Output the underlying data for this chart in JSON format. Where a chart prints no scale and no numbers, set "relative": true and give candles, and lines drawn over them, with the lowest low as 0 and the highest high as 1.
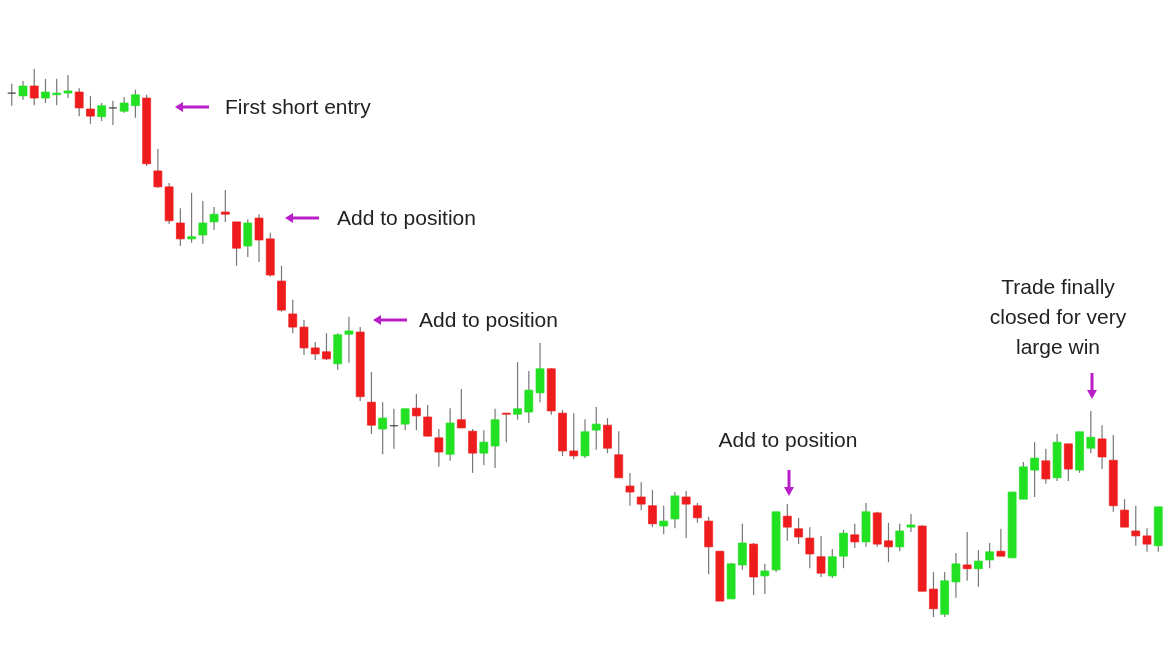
{
  "chart_data": {
    "type": "candlestick",
    "relative": true,
    "categories": [
      null,
      null,
      null,
      null,
      null,
      null,
      null,
      null,
      null,
      null,
      null,
      null,
      null,
      null,
      null,
      null,
      null,
      null,
      null,
      null,
      null,
      null,
      null,
      null,
      null,
      null,
      null,
      null,
      null,
      null,
      null,
      null,
      null,
      null,
      null,
      null,
      null,
      null,
      null,
      null,
      null,
      null,
      null,
      null,
      null,
      null,
      null,
      null,
      null,
      null,
      null,
      null,
      null,
      null,
      null,
      null,
      null,
      null,
      null,
      null,
      null,
      null,
      null,
      null,
      null,
      null,
      null,
      null,
      null,
      null,
      null,
      null,
      null,
      null,
      null,
      null,
      null,
      null,
      null,
      null,
      null,
      null,
      null,
      null,
      null,
      null,
      null,
      null,
      null,
      null,
      null,
      null,
      null,
      null,
      null,
      null,
      null,
      null,
      null,
      null,
      null,
      null,
      null
    ],
    "ohlc": [
      [
        0.956,
        0.973,
        0.933,
        0.956
      ],
      [
        0.951,
        0.978,
        0.944,
        0.969
      ],
      [
        0.969,
        1,
        0.934,
        0.947
      ],
      [
        0.947,
        0.982,
        0.938,
        0.958
      ],
      [
        0.953,
        0.982,
        0.934,
        0.956
      ],
      [
        0.956,
        0.989,
        0.947,
        0.96
      ],
      [
        0.958,
        0.965,
        0.914,
        0.929
      ],
      [
        0.927,
        0.951,
        0.9,
        0.914
      ],
      [
        0.913,
        0.938,
        0.905,
        0.933
      ],
      [
        0.929,
        0.942,
        0.898,
        0.929
      ],
      [
        0.923,
        0.949,
        0.92,
        0.938
      ],
      [
        0.933,
        0.962,
        0.911,
        0.953
      ],
      [
        0.947,
        0.953,
        0.823,
        0.827
      ],
      [
        0.814,
        0.854,
        0.783,
        0.785
      ],
      [
        0.785,
        0.792,
        0.717,
        0.723
      ],
      [
        0.719,
        0.746,
        0.677,
        0.69
      ],
      [
        0.69,
        0.774,
        0.683,
        0.694
      ],
      [
        0.697,
        0.759,
        0.681,
        0.719
      ],
      [
        0.721,
        0.748,
        0.706,
        0.735
      ],
      [
        0.739,
        0.779,
        0.721,
        0.735
      ],
      [
        0.721,
        0.721,
        0.641,
        0.673
      ],
      [
        0.677,
        0.726,
        0.657,
        0.719
      ],
      [
        0.728,
        0.735,
        0.648,
        0.688
      ],
      [
        0.69,
        0.701,
        0.621,
        0.624
      ],
      [
        0.613,
        0.641,
        0.557,
        0.56
      ],
      [
        0.553,
        0.579,
        0.518,
        0.529
      ],
      [
        0.529,
        0.542,
        0.478,
        0.491
      ],
      [
        0.491,
        0.502,
        0.469,
        0.48
      ],
      [
        0.484,
        0.518,
        0.469,
        0.471
      ],
      [
        0.462,
        0.518,
        0.451,
        0.515
      ],
      [
        0.516,
        0.548,
        0.464,
        0.522
      ],
      [
        0.52,
        0.529,
        0.394,
        0.402
      ],
      [
        0.392,
        0.447,
        0.334,
        0.35
      ],
      [
        0.343,
        0.392,
        0.297,
        0.363
      ],
      [
        0.349,
        0.38,
        0.307,
        0.349
      ],
      [
        0.352,
        0.38,
        0.341,
        0.38
      ],
      [
        0.381,
        0.407,
        0.341,
        0.367
      ],
      [
        0.365,
        0.387,
        0.33,
        0.33
      ],
      [
        0.327,
        0.343,
        0.274,
        0.301
      ],
      [
        0.297,
        0.381,
        0.285,
        0.354
      ],
      [
        0.36,
        0.416,
        0.345,
        0.345
      ],
      [
        0.339,
        0.343,
        0.263,
        0.299
      ],
      [
        0.299,
        0.341,
        0.277,
        0.319
      ],
      [
        0.312,
        0.38,
        0.272,
        0.36
      ],
      [
        0.372,
        0.372,
        0.319,
        0.37
      ],
      [
        0.37,
        0.465,
        0.36,
        0.38
      ],
      [
        0.374,
        0.449,
        0.354,
        0.414
      ],
      [
        0.409,
        0.5,
        0.392,
        0.453
      ],
      [
        0.453,
        0.454,
        0.369,
        0.376
      ],
      [
        0.372,
        0.378,
        0.294,
        0.303
      ],
      [
        0.303,
        0.372,
        0.288,
        0.294
      ],
      [
        0.294,
        0.361,
        0.29,
        0.338
      ],
      [
        0.341,
        0.383,
        0.305,
        0.352
      ],
      [
        0.35,
        0.363,
        0.299,
        0.308
      ],
      [
        0.296,
        0.339,
        0.254,
        0.254
      ],
      [
        0.239,
        0.263,
        0.203,
        0.228
      ],
      [
        0.219,
        0.246,
        0.195,
        0.206
      ],
      [
        0.203,
        0.232,
        0.164,
        0.17
      ],
      [
        0.166,
        0.203,
        0.151,
        0.175
      ],
      [
        0.179,
        0.228,
        0.162,
        0.221
      ],
      [
        0.219,
        0.23,
        0.144,
        0.206
      ],
      [
        0.203,
        0.208,
        0.172,
        0.181
      ],
      [
        0.175,
        0.183,
        0.078,
        0.128
      ],
      [
        0.12,
        0.12,
        0.029,
        0.029
      ],
      [
        0.033,
        0.099,
        0.033,
        0.097
      ],
      [
        0.095,
        0.17,
        0.086,
        0.135
      ],
      [
        0.133,
        0.135,
        0.04,
        0.073
      ],
      [
        0.075,
        0.097,
        0.042,
        0.084
      ],
      [
        0.086,
        0.192,
        0.082,
        0.192
      ],
      [
        0.184,
        0.206,
        0.139,
        0.164
      ],
      [
        0.161,
        0.181,
        0.133,
        0.146
      ],
      [
        0.144,
        0.164,
        0.089,
        0.115
      ],
      [
        0.11,
        0.148,
        0.073,
        0.08
      ],
      [
        0.075,
        0.124,
        0.071,
        0.11
      ],
      [
        0.111,
        0.159,
        0.089,
        0.153
      ],
      [
        0.15,
        0.17,
        0.126,
        0.137
      ],
      [
        0.137,
        0.208,
        0.128,
        0.192
      ],
      [
        0.19,
        0.192,
        0.128,
        0.133
      ],
      [
        0.139,
        0.172,
        0.1,
        0.128
      ],
      [
        0.128,
        0.17,
        0.12,
        0.157
      ],
      [
        0.164,
        0.188,
        0.155,
        0.168
      ],
      [
        0.166,
        0.168,
        0.047,
        0.047
      ],
      [
        0.051,
        0.082,
        0,
        0.015
      ],
      [
        0.005,
        0.082,
        0,
        0.066
      ],
      [
        0.064,
        0.117,
        0.035,
        0.097
      ],
      [
        0.095,
        0.155,
        0.066,
        0.088
      ],
      [
        0.088,
        0.122,
        0.055,
        0.102
      ],
      [
        0.104,
        0.135,
        0.089,
        0.119
      ],
      [
        0.12,
        0.161,
        0.111,
        0.111
      ],
      [
        0.108,
        0.228,
        0.108,
        0.228
      ],
      [
        0.215,
        0.283,
        0.215,
        0.274
      ],
      [
        0.268,
        0.319,
        0.219,
        0.29
      ],
      [
        0.285,
        0.307,
        0.243,
        0.252
      ],
      [
        0.254,
        0.334,
        0.248,
        0.319
      ],
      [
        0.316,
        0.316,
        0.248,
        0.27
      ],
      [
        0.268,
        0.338,
        0.263,
        0.338
      ],
      [
        0.308,
        0.376,
        0.299,
        0.328
      ],
      [
        0.325,
        0.35,
        0.27,
        0.292
      ],
      [
        0.286,
        0.332,
        0.192,
        0.203
      ],
      [
        0.195,
        0.215,
        0.164,
        0.164
      ],
      [
        0.157,
        0.203,
        0.13,
        0.148
      ],
      [
        0.148,
        0.162,
        0.119,
        0.133
      ],
      [
        0.13,
        0.201,
        0.119,
        0.201
      ]
    ],
    "colors": [
      "#333333",
      "#22e022",
      "#ee1c1c",
      "#22e022",
      "#22e022",
      "#22e022",
      "#ee1c1c",
      "#ee1c1c",
      "#22e022",
      "#333333",
      "#22e022",
      "#22e022",
      "#ee1c1c",
      "#ee1c1c",
      "#ee1c1c",
      "#ee1c1c",
      "#22e022",
      "#22e022",
      "#22e022",
      "#ee1c1c",
      "#ee1c1c",
      "#22e022",
      "#ee1c1c",
      "#ee1c1c",
      "#ee1c1c",
      "#ee1c1c",
      "#ee1c1c",
      "#ee1c1c",
      "#ee1c1c",
      "#22e022",
      "#22e022",
      "#ee1c1c",
      "#ee1c1c",
      "#22e022",
      "#333333",
      "#22e022",
      "#ee1c1c",
      "#ee1c1c",
      "#ee1c1c",
      "#22e022",
      "#ee1c1c",
      "#ee1c1c",
      "#22e022",
      "#22e022",
      "#ee1c1c",
      "#22e022",
      "#22e022",
      "#22e022",
      "#ee1c1c",
      "#ee1c1c",
      "#ee1c1c",
      "#22e022",
      "#22e022",
      "#ee1c1c",
      "#ee1c1c",
      "#ee1c1c",
      "#ee1c1c",
      "#ee1c1c",
      "#22e022",
      "#22e022",
      "#ee1c1c",
      "#ee1c1c",
      "#ee1c1c",
      "#ee1c1c",
      "#22e022",
      "#22e022",
      "#ee1c1c",
      "#22e022",
      "#22e022",
      "#ee1c1c",
      "#ee1c1c",
      "#ee1c1c",
      "#ee1c1c",
      "#22e022",
      "#22e022",
      "#ee1c1c",
      "#22e022",
      "#ee1c1c",
      "#ee1c1c",
      "#22e022",
      "#22e022",
      "#ee1c1c",
      "#ee1c1c",
      "#22e022",
      "#22e022",
      "#ee1c1c",
      "#22e022",
      "#22e022",
      "#ee1c1c",
      "#22e022",
      "#22e022",
      "#22e022",
      "#ee1c1c",
      "#22e022",
      "#ee1c1c",
      "#22e022",
      "#22e022",
      "#ee1c1c",
      "#ee1c1c",
      "#ee1c1c",
      "#ee1c1c",
      "#ee1c1c",
      "#22e022"
    ],
    "annotations": [
      "First short entry",
      "Add to position",
      "Add to position",
      "Add to position",
      "Trade finally closed for very large win"
    ]
  }
}
